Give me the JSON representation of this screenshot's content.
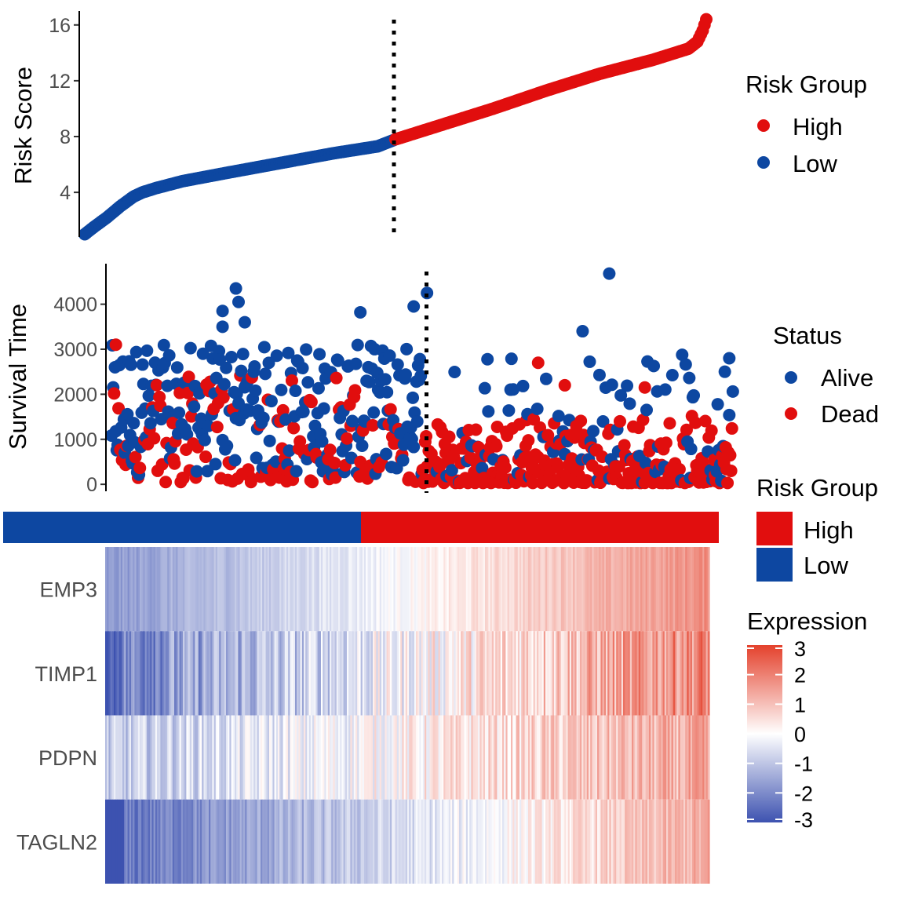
{
  "colors": {
    "high": "#e10e0e",
    "low": "#0d47a1",
    "alive": "#0d47a1",
    "dead": "#e10e0e",
    "heat_low": "#3d52b0",
    "heat_mid": "#ffffff",
    "heat_high": "#e4412c"
  },
  "chart_data": [
    {
      "type": "scatter",
      "id": "risk-score",
      "ylabel": "Risk Score",
      "xlabel": "",
      "ylim": [
        0.8,
        17
      ],
      "yticks": [
        4,
        8,
        12,
        16
      ],
      "n_patients": 700,
      "cutoff_rank": 350,
      "rank_curve": {
        "rank": [
          0,
          10,
          25,
          40,
          55,
          65,
          80,
          110,
          160,
          220,
          280,
          330,
          350,
          400,
          460,
          520,
          580,
          640,
          680,
          690,
          696,
          700
        ],
        "score": [
          1.0,
          1.5,
          2.2,
          3.0,
          3.7,
          4.0,
          4.3,
          4.8,
          5.4,
          6.1,
          6.8,
          7.3,
          7.8,
          8.8,
          10.0,
          11.3,
          12.5,
          13.5,
          14.3,
          14.8,
          15.6,
          16.4
        ]
      },
      "legend": {
        "title": "Risk Group",
        "entries": [
          "High",
          "Low"
        ],
        "position": "right"
      }
    },
    {
      "type": "scatter",
      "id": "survival-time",
      "ylabel": "Survival Time",
      "xlabel": "",
      "ylim": [
        -50,
        4900
      ],
      "yticks": [
        0,
        1000,
        2000,
        3000,
        4000
      ],
      "cutoff_rank": 350,
      "legend": {
        "title": "Status",
        "entries": [
          "Alive",
          "Dead"
        ],
        "position": "right"
      },
      "highlight_points": [
        {
          "rank": 5,
          "time": 3100,
          "status": "Dead"
        },
        {
          "rank": 125,
          "time": 3850,
          "status": "Alive"
        },
        {
          "rank": 125,
          "time": 3500,
          "status": "Alive"
        },
        {
          "rank": 140,
          "time": 4350,
          "status": "Alive"
        },
        {
          "rank": 143,
          "time": 4050,
          "status": "Alive"
        },
        {
          "rank": 150,
          "time": 3600,
          "status": "Alive"
        },
        {
          "rank": 280,
          "time": 3820,
          "status": "Alive"
        },
        {
          "rank": 340,
          "time": 3950,
          "status": "Alive"
        },
        {
          "rank": 355,
          "time": 4250,
          "status": "Alive"
        },
        {
          "rank": 560,
          "time": 4680,
          "status": "Alive"
        },
        {
          "rank": 530,
          "time": 3400,
          "status": "Alive"
        },
        {
          "rank": 480,
          "time": 2700,
          "status": "Dead"
        },
        {
          "rank": 510,
          "time": 2200,
          "status": "Dead"
        },
        {
          "rank": 600,
          "time": 2150,
          "status": "Dead"
        },
        {
          "rank": 695,
          "time": 2800,
          "status": "Alive"
        }
      ]
    },
    {
      "type": "heatmap",
      "id": "expression-heatmap",
      "genes": [
        "EMP3",
        "TIMP1",
        "PDPN",
        "TAGLN2"
      ],
      "annotation": {
        "title": "Risk Group",
        "entries": [
          "High",
          "Low"
        ],
        "low_fraction": 0.5
      },
      "colorbar": {
        "title": "Expression",
        "range": [
          -3,
          3
        ],
        "ticks": [
          3,
          2,
          1,
          0,
          -1,
          -2,
          -3
        ]
      },
      "gene_profiles": [
        {
          "gene": "EMP3",
          "start": -1.8,
          "end": 1.8,
          "noise": 0.3
        },
        {
          "gene": "TIMP1",
          "start": -2.2,
          "end": 2.0,
          "noise": 0.9
        },
        {
          "gene": "PDPN",
          "start": -1.0,
          "end": 1.3,
          "noise": 0.7
        },
        {
          "gene": "TAGLN2",
          "start": -2.5,
          "end": 1.3,
          "noise": 0.5
        }
      ]
    }
  ]
}
